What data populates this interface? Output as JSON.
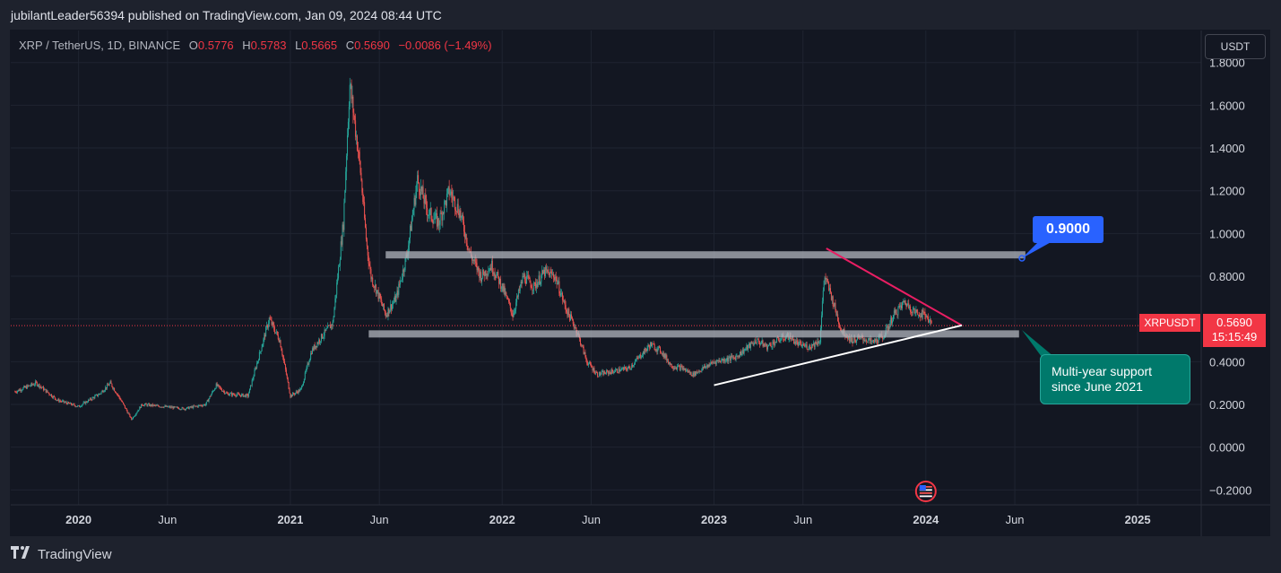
{
  "header": {
    "publisher_line": "jubilantLeader56394 published on TradingView.com, Jan 09, 2024 08:44 UTC"
  },
  "legend": {
    "symbol": "XRP / TetherUS, 1D, BINANCE",
    "o_label": "O",
    "o_value": "0.5776",
    "h_label": "H",
    "h_value": "0.5783",
    "l_label": "L",
    "l_value": "0.5665",
    "c_label": "C",
    "c_value": "0.5690",
    "change": "−0.0086 (−1.49%)"
  },
  "currency_button": "USDT",
  "last_price": {
    "symbol": "XRPUSDT",
    "price": "0.5690",
    "countdown": "15:15:49"
  },
  "annotations": {
    "resistance_label": "0.9000",
    "support_note_line1": "Multi-year support",
    "support_note_line2": "since June 2021"
  },
  "footer": {
    "brand": "TradingView"
  },
  "colors": {
    "background": "#131722",
    "up": "#26a69a",
    "down": "#ef5350",
    "resistance_line": "#e91e63",
    "support_line": "#ffffff",
    "zone": "#b2b5be"
  },
  "chart_data": {
    "type": "candlestick",
    "title": "XRP / TetherUS, 1D, BINANCE",
    "y_ticks": [
      "1.8000",
      "1.6000",
      "1.4000",
      "1.2000",
      "1.0000",
      "0.8000",
      "0.6000",
      "0.4000",
      "0.2000",
      "0.0000",
      "−0.2000"
    ],
    "x_ticks": [
      "2020",
      "Jun",
      "2021",
      "Jun",
      "2022",
      "Jun",
      "2023",
      "Jun",
      "2024",
      "Jun",
      "2025"
    ],
    "ylim": [
      -0.27,
      1.95
    ],
    "price_series": {
      "t": [
        2019.7,
        2019.8,
        2019.9,
        2020.0,
        2020.1,
        2020.15,
        2020.2,
        2020.25,
        2020.3,
        2020.4,
        2020.5,
        2020.6,
        2020.65,
        2020.7,
        2020.8,
        2020.9,
        2020.95,
        2021.0,
        2021.05,
        2021.1,
        2021.15,
        2021.2,
        2021.25,
        2021.28,
        2021.3,
        2021.33,
        2021.36,
        2021.38,
        2021.42,
        2021.45,
        2021.5,
        2021.55,
        2021.6,
        2021.65,
        2021.7,
        2021.75,
        2021.8,
        2021.85,
        2021.9,
        2021.95,
        2022.0,
        2022.05,
        2022.1,
        2022.15,
        2022.2,
        2022.25,
        2022.3,
        2022.35,
        2022.4,
        2022.45,
        2022.5,
        2022.6,
        2022.7,
        2022.75,
        2022.8,
        2022.85,
        2022.9,
        2022.95,
        2023.0,
        2023.1,
        2023.2,
        2023.25,
        2023.3,
        2023.35,
        2023.4,
        2023.45,
        2023.5,
        2023.52,
        2023.55,
        2023.6,
        2023.65,
        2023.7,
        2023.75,
        2023.8,
        2023.85,
        2023.9,
        2023.95,
        2024.0,
        2024.03
      ],
      "close": [
        0.26,
        0.3,
        0.22,
        0.19,
        0.25,
        0.3,
        0.22,
        0.13,
        0.2,
        0.19,
        0.18,
        0.2,
        0.29,
        0.25,
        0.24,
        0.6,
        0.5,
        0.24,
        0.27,
        0.45,
        0.52,
        0.58,
        1.05,
        1.7,
        1.55,
        1.3,
        0.95,
        0.8,
        0.7,
        0.62,
        0.7,
        0.9,
        1.25,
        1.1,
        1.05,
        1.2,
        1.1,
        0.9,
        0.8,
        0.85,
        0.75,
        0.62,
        0.8,
        0.75,
        0.82,
        0.8,
        0.65,
        0.55,
        0.4,
        0.34,
        0.35,
        0.37,
        0.48,
        0.45,
        0.38,
        0.37,
        0.34,
        0.37,
        0.4,
        0.42,
        0.5,
        0.47,
        0.5,
        0.52,
        0.48,
        0.47,
        0.5,
        0.8,
        0.72,
        0.55,
        0.5,
        0.51,
        0.49,
        0.52,
        0.62,
        0.68,
        0.63,
        0.62,
        0.57
      ]
    },
    "levels": {
      "resistance": 0.9,
      "support": 0.53
    },
    "trendlines": [
      {
        "name": "descending",
        "from": [
          2023.53,
          0.93
        ],
        "to": [
          2024.17,
          0.57
        ]
      },
      {
        "name": "ascending",
        "from": [
          2023.0,
          0.29
        ],
        "to": [
          2024.17,
          0.57
        ]
      }
    ],
    "last": 0.569
  }
}
